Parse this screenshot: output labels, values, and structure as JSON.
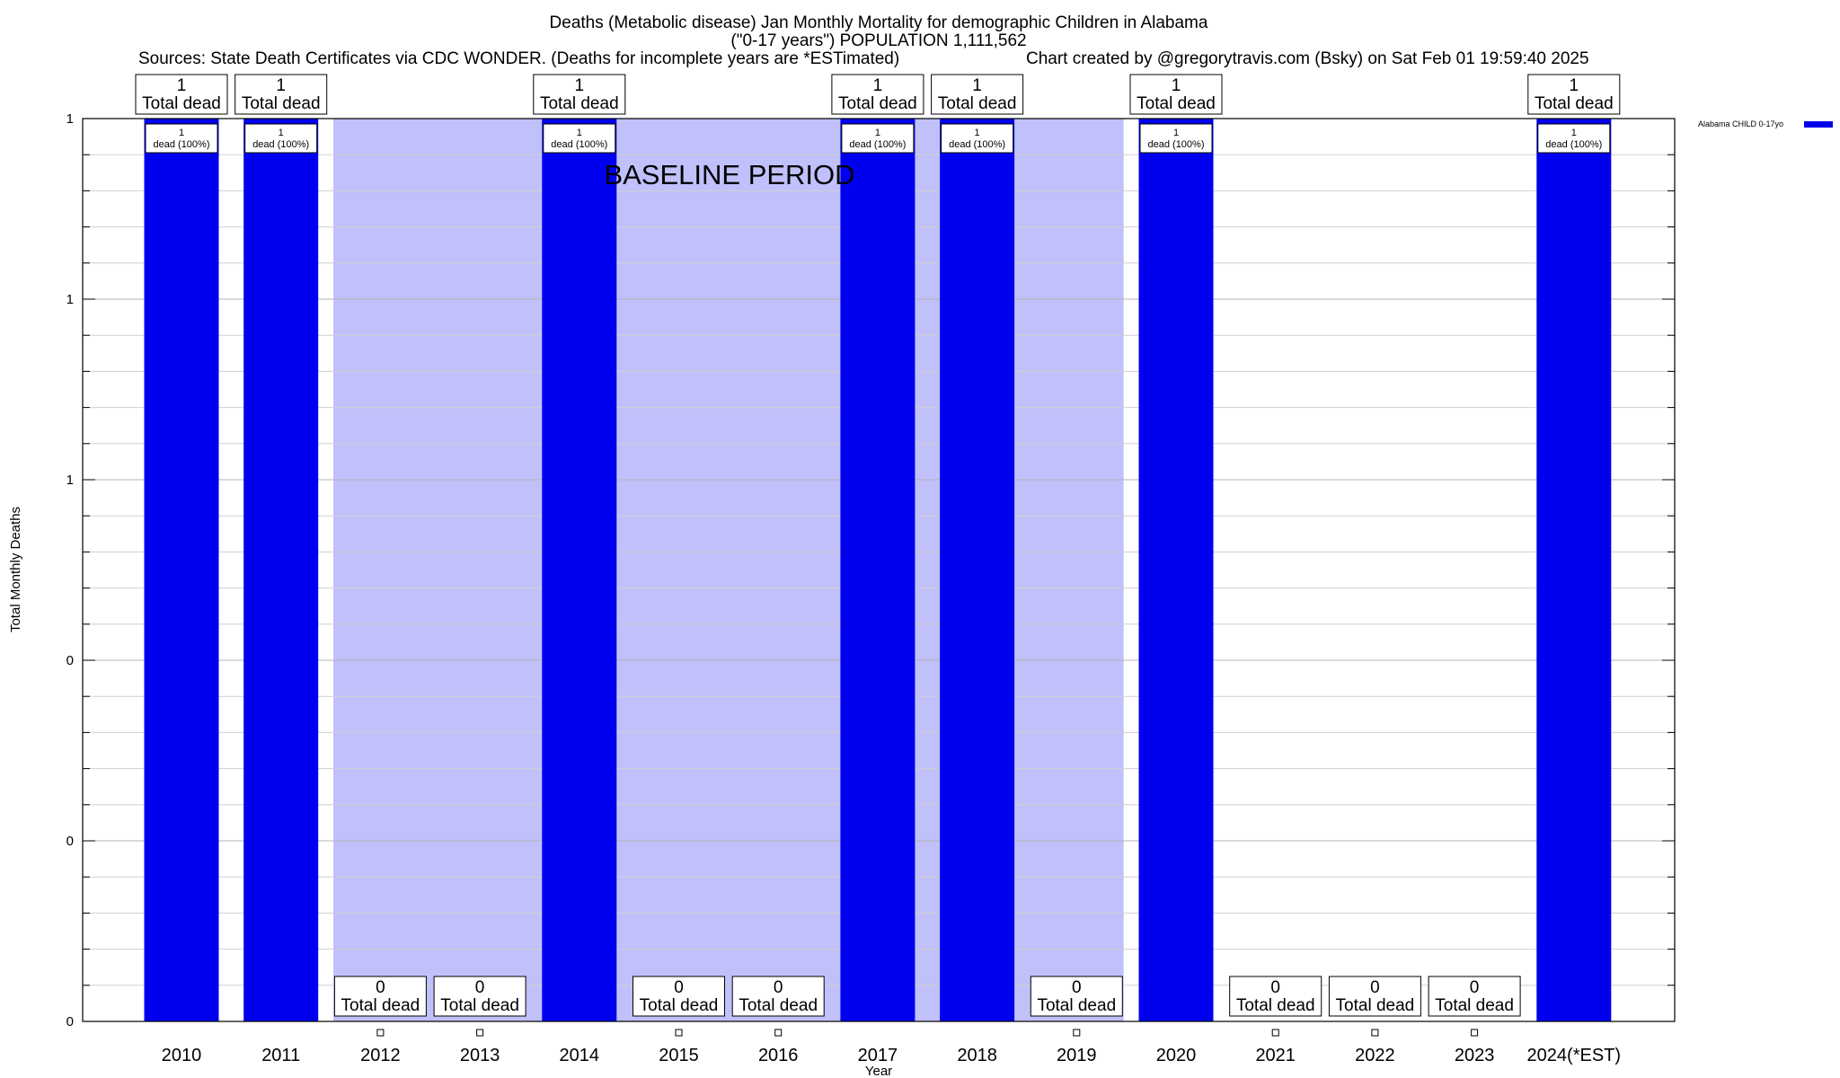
{
  "chart_data": {
    "type": "bar",
    "title_line1": "Deaths (Metabolic disease) Jan Monthly Mortality for demographic Children in Alabama",
    "title_line2": "(\"0-17 years\") POPULATION 1,111,562",
    "sources": "Sources: State Death Certificates via CDC WONDER. (Deaths for incomplete years are *ESTimated)",
    "credit": "Chart created by @gregorytravis.com (Bsky) on Sat Feb 01 19:59:40 2025",
    "xlabel": "Year",
    "ylabel": "Total Monthly Deaths",
    "categories": [
      "2010",
      "2011",
      "2012",
      "2013",
      "2014",
      "2015",
      "2016",
      "2017",
      "2018",
      "2019",
      "2020",
      "2021",
      "2022",
      "2023",
      "2024(*EST)"
    ],
    "ylim": [
      0,
      1
    ],
    "yticks": [
      0,
      0.2,
      0.4,
      0.6,
      0.8,
      1
    ],
    "ytick_labels": [
      "0",
      "0",
      "0",
      "1",
      "1",
      "1"
    ],
    "series": [
      {
        "name": "Alabama CHILD 0-17yo",
        "color": "#0000ee",
        "values": [
          1,
          1,
          0,
          0,
          1,
          0,
          0,
          1,
          1,
          0,
          1,
          0,
          0,
          0,
          1
        ]
      }
    ],
    "top_labels": [
      "1",
      "1",
      "0",
      "0",
      "1",
      "0",
      "0",
      "1",
      "1",
      "0",
      "1",
      "0",
      "0",
      "0",
      "1"
    ],
    "total_dead_text": "Total dead",
    "inner_labels": [
      "1",
      "1",
      "",
      "",
      "1",
      "",
      "",
      "1",
      "1",
      "",
      "1",
      "",
      "",
      "",
      "1"
    ],
    "inner_pct_text": "dead (100%)",
    "baseline": {
      "label": "BASELINE PERIOD",
      "start": "2012",
      "end": "2019",
      "color": "#c0c0fa"
    },
    "legend_position": "top-right",
    "grid": true
  }
}
